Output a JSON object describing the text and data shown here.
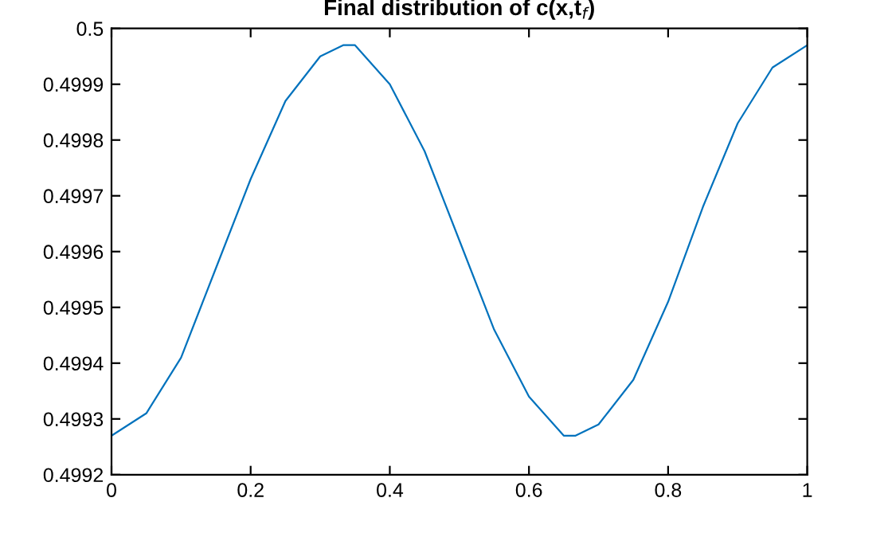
{
  "chart_data": {
    "type": "line",
    "title": "Final distribution of c(x,t$_{f}$)",
    "x": [
      0,
      0.05,
      0.1,
      0.15,
      0.2,
      0.25,
      0.3,
      0.333,
      0.35,
      0.4,
      0.45,
      0.5,
      0.55,
      0.6,
      0.65,
      0.667,
      0.7,
      0.75,
      0.8,
      0.85,
      0.9,
      0.95,
      1
    ],
    "series": [
      {
        "color": "#0072bd",
        "values": [
          0.49927,
          0.49931,
          0.49941,
          0.49957,
          0.49973,
          0.49987,
          0.49995,
          0.49997,
          0.49997,
          0.4999,
          0.49978,
          0.49962,
          0.49946,
          0.49934,
          0.49927,
          0.49927,
          0.49929,
          0.49937,
          0.49951,
          0.49968,
          0.49983,
          0.49993,
          0.49997
        ]
      }
    ],
    "xlim": [
      0,
      1
    ],
    "xticks": [
      0,
      0.2,
      0.4,
      0.6,
      0.8,
      1
    ],
    "ylim": [
      0.4992,
      0.5
    ],
    "yticks": [
      0.4992,
      0.4993,
      0.4994,
      0.4995,
      0.4996,
      0.4997,
      0.4998,
      0.4999,
      0.5
    ],
    "grid": false,
    "legend": false,
    "marker": "none",
    "line_style": "solid"
  }
}
